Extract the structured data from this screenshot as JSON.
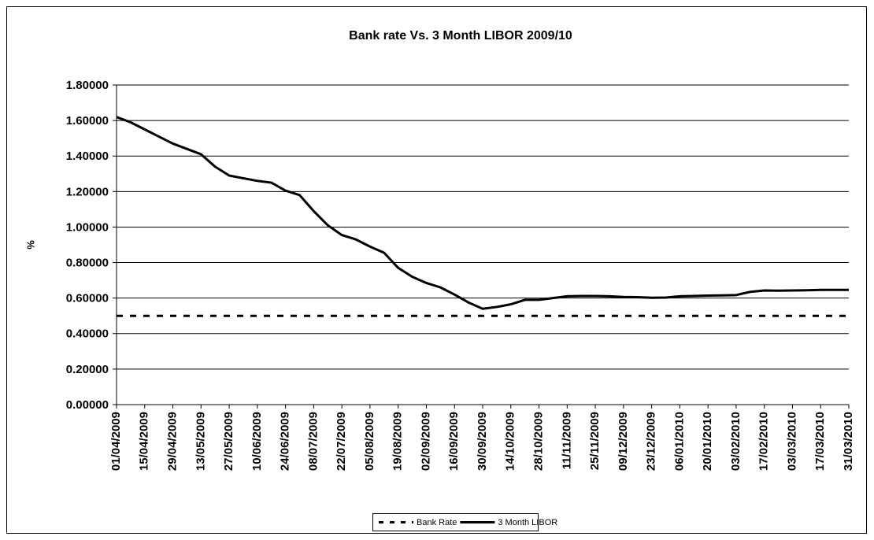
{
  "chart_data": {
    "type": "line",
    "title": "Bank rate Vs. 3 Month LIBOR 2009/10",
    "y_label": "%",
    "categories": [
      "01/04/2009",
      null,
      "15/04/2009",
      null,
      "29/04/2009",
      null,
      "13/05/2009",
      null,
      "27/05/2009",
      null,
      "10/06/2009",
      null,
      "24/06/2009",
      null,
      "08/07/2009",
      null,
      "22/07/2009",
      null,
      "05/08/2009",
      null,
      "19/08/2009",
      null,
      "02/09/2009",
      null,
      "16/09/2009",
      null,
      "30/09/2009",
      null,
      "14/10/2009",
      null,
      "28/10/2009",
      null,
      "11/11/2009",
      null,
      "25/11/2009",
      null,
      "09/12/2009",
      null,
      "23/12/2009",
      null,
      "06/01/2010",
      null,
      "20/01/2010",
      null,
      "03/02/2010",
      null,
      "17/02/2010",
      null,
      "03/03/2010",
      null,
      "17/03/2010",
      null,
      "31/03/2010"
    ],
    "series": [
      {
        "name": "Bank Rate",
        "color": "#000000",
        "dash": "dashed",
        "values": [
          0.5,
          0.5,
          0.5,
          0.5,
          0.5,
          0.5,
          0.5,
          0.5,
          0.5,
          0.5,
          0.5,
          0.5,
          0.5,
          0.5,
          0.5,
          0.5,
          0.5,
          0.5,
          0.5,
          0.5,
          0.5,
          0.5,
          0.5,
          0.5,
          0.5,
          0.5,
          0.5,
          0.5,
          0.5,
          0.5,
          0.5,
          0.5,
          0.5,
          0.5,
          0.5,
          0.5,
          0.5,
          0.5,
          0.5,
          0.5,
          0.5,
          0.5,
          0.5,
          0.5,
          0.5,
          0.5,
          0.5,
          0.5,
          0.5,
          0.5,
          0.5,
          0.5,
          0.5
        ]
      },
      {
        "name": "3 Month LIBOR",
        "color": "#000000",
        "dash": "solid",
        "values": [
          1.62,
          1.59,
          1.55,
          1.51,
          1.47,
          1.44,
          1.41,
          1.34,
          1.29,
          1.275,
          1.26,
          1.25,
          1.205,
          1.18,
          1.09,
          1.01,
          0.955,
          0.93,
          0.89,
          0.855,
          0.77,
          0.72,
          0.685,
          0.66,
          0.62,
          0.575,
          0.54,
          0.55,
          0.565,
          0.59,
          0.59,
          0.6,
          0.61,
          0.612,
          0.612,
          0.61,
          0.606,
          0.605,
          0.602,
          0.603,
          0.61,
          0.612,
          0.614,
          0.615,
          0.617,
          0.635,
          0.643,
          0.642,
          0.643,
          0.644,
          0.646,
          0.646,
          0.646
        ]
      }
    ],
    "ylim": [
      0,
      1.8
    ],
    "yticks": [
      {
        "value": 0,
        "label": "0.00000"
      },
      {
        "value": 0.2,
        "label": "0.20000"
      },
      {
        "value": 0.4,
        "label": "0.40000"
      },
      {
        "value": 0.6,
        "label": "0.60000"
      },
      {
        "value": 0.8,
        "label": "0.80000"
      },
      {
        "value": 1.0,
        "label": "1.00000"
      },
      {
        "value": 1.2,
        "label": "1.20000"
      },
      {
        "value": 1.4,
        "label": "1.40000"
      },
      {
        "value": 1.6,
        "label": "1.60000"
      },
      {
        "value": 1.8,
        "label": "1.80000"
      }
    ],
    "grid": true,
    "legend": "bottom"
  }
}
